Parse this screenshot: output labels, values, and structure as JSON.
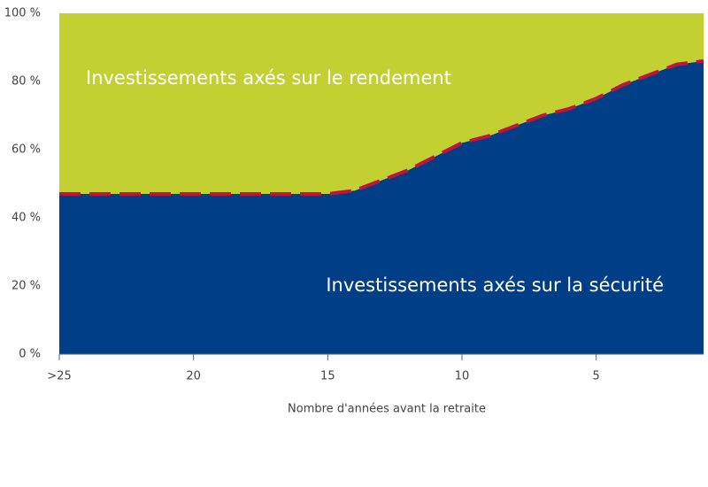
{
  "chart_data": {
    "type": "stacked_area",
    "x_label": "Nombre d'années avant la retraite",
    "x": [
      25,
      20,
      15,
      14,
      13,
      12,
      11,
      10,
      9,
      8,
      7,
      6,
      5,
      4,
      3,
      2,
      1
    ],
    "series": [
      {
        "name": "Investissements axés sur la sécurité",
        "color": "#003f87",
        "values": [
          47,
          47,
          47,
          48,
          51,
          54,
          58,
          62,
          64,
          67,
          70,
          72,
          75,
          79,
          82,
          85,
          86
        ]
      },
      {
        "name": "Investissements axés sur le rendement",
        "color": "#c3d031",
        "values": [
          53,
          53,
          53,
          52,
          49,
          46,
          42,
          38,
          36,
          33,
          30,
          28,
          25,
          21,
          18,
          15,
          14
        ]
      }
    ],
    "boundary_color": "#c0143c",
    "xlim": [
      25,
      1
    ],
    "xticks": [
      {
        "value": 25,
        "label": ">25"
      },
      20,
      15,
      10,
      5
    ],
    "ylim": [
      0,
      100
    ],
    "yticks": [
      {
        "value": 0,
        "label": "0 %"
      },
      {
        "value": 20,
        "label": "20 %"
      },
      {
        "value": 40,
        "label": "40 %"
      },
      {
        "value": 60,
        "label": "60 %"
      },
      {
        "value": 80,
        "label": "80 %"
      },
      {
        "value": 100,
        "label": "100 %"
      }
    ]
  }
}
